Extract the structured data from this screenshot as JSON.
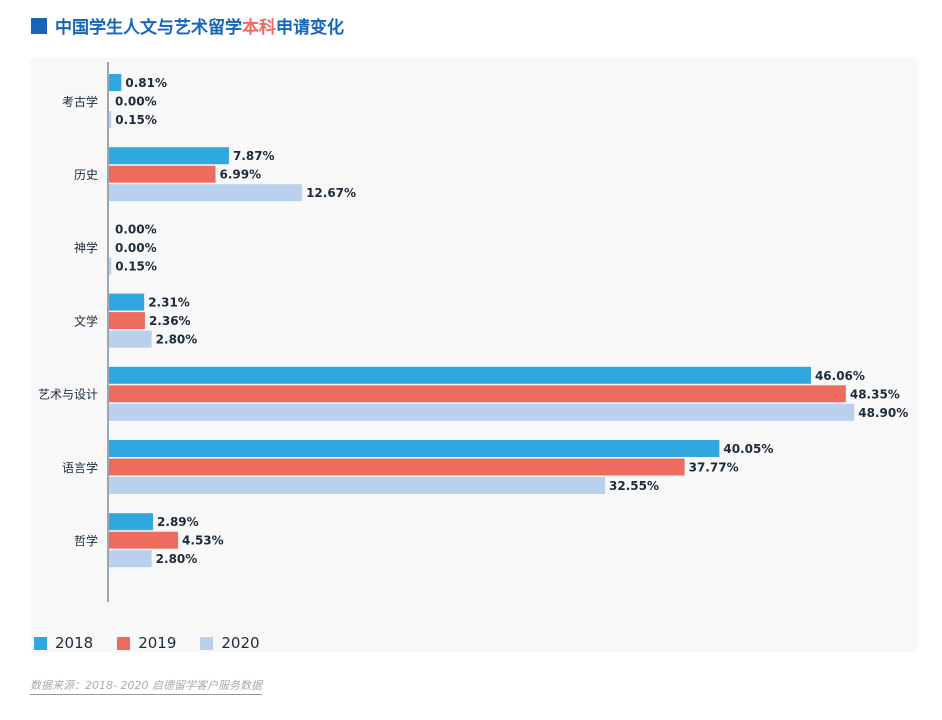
{
  "title": {
    "part1": "中国学生人文与艺术留学",
    "highlight": "本科",
    "part2": "申请变化"
  },
  "source": "数据来源：2018- 2020 启德留学客户服务数据",
  "chart_data": {
    "type": "bar",
    "orientation": "horizontal",
    "categories": [
      "考古学",
      "历史",
      "神学",
      "文学",
      "艺术与设计",
      "语言学",
      "哲学"
    ],
    "series": [
      {
        "name": "2018",
        "color": "#2fa8e0",
        "values": [
          0.81,
          7.87,
          0.0,
          2.31,
          46.06,
          40.05,
          2.89
        ]
      },
      {
        "name": "2019",
        "color": "#ee6b60",
        "values": [
          0.0,
          6.99,
          0.0,
          2.36,
          48.35,
          37.77,
          4.53
        ]
      },
      {
        "name": "2020",
        "color": "#bad1ee",
        "values": [
          0.15,
          12.67,
          0.15,
          2.8,
          48.9,
          32.55,
          2.8
        ]
      }
    ],
    "labels": [
      [
        "0.81%",
        "7.87%",
        "0.00%",
        "2.31%",
        "46.06%",
        "40.05%",
        "2.89%"
      ],
      [
        "0.00%",
        "6.99%",
        "0.00%",
        "2.36%",
        "48.35%",
        "37.77%",
        "4.53%"
      ],
      [
        "0.15%",
        "12.67%",
        "0.15%",
        "2.80%",
        "48.90%",
        "32.55%",
        "2.80%"
      ]
    ],
    "unit": "%",
    "xlim": [
      0,
      50
    ],
    "legend": "bottom-left"
  }
}
